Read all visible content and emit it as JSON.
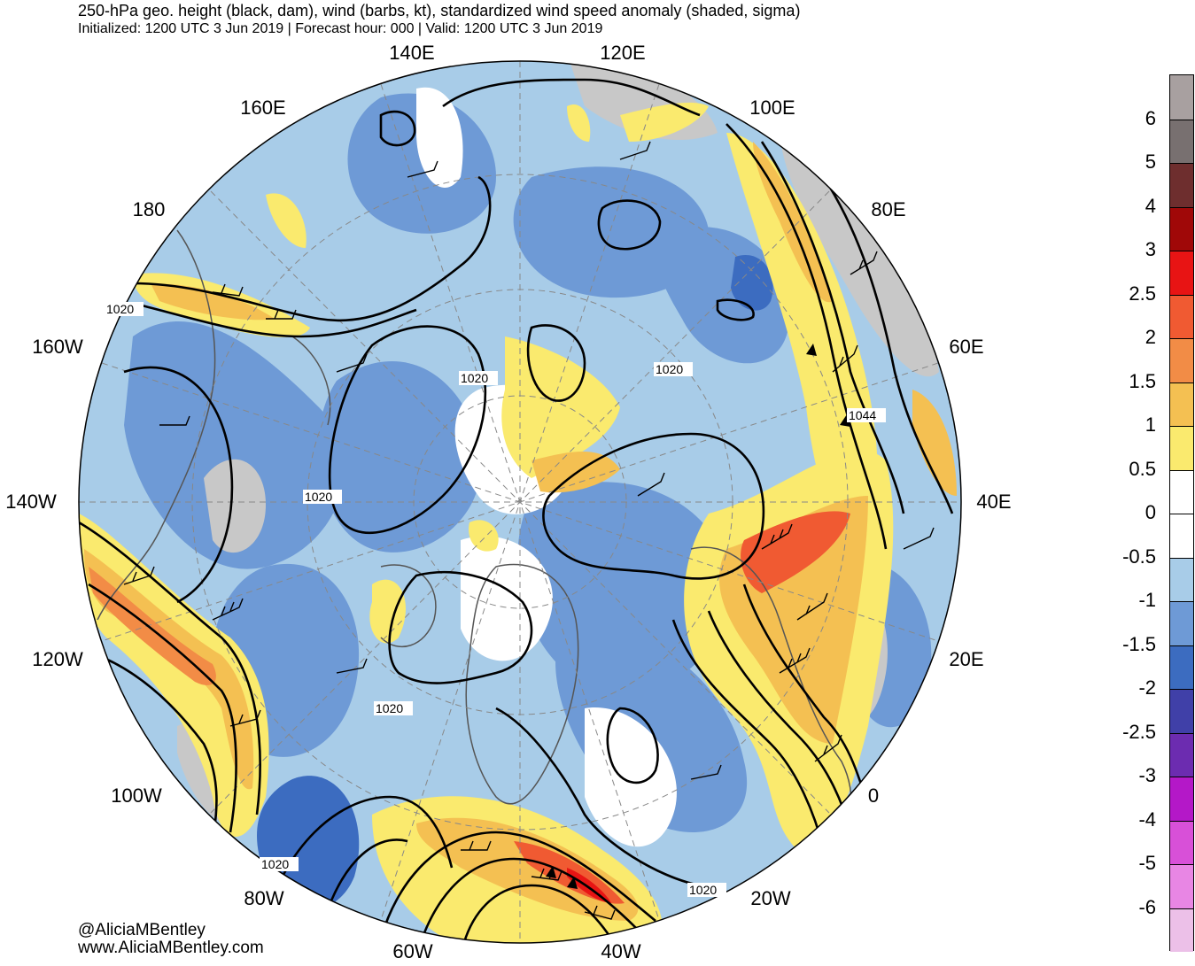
{
  "header": {
    "title": "250-hPa geo. height (black, dam), wind (barbs, kt), standardized wind speed anomaly (shaded, sigma)",
    "subtitle": "Initialized: 1200 UTC 3 Jun 2019 | Forecast hour: 000 | Valid: 1200 UTC 3 Jun 2019"
  },
  "map": {
    "projection": "north polar stereographic",
    "longitude_labels": [
      "140E",
      "120E",
      "160E",
      "100E",
      "180",
      "80E",
      "160W",
      "60E",
      "140W",
      "40E",
      "120W",
      "20E",
      "100W",
      "0",
      "80W",
      "20W",
      "60W",
      "40W"
    ],
    "contour_labels": [
      "1020",
      "1020",
      "1020",
      "1044",
      "1020",
      "1020",
      "1020",
      "1020"
    ]
  },
  "colorbar": {
    "levels": [
      "6",
      "5",
      "4",
      "3",
      "2.5",
      "2",
      "1.5",
      "1",
      "0.5",
      "0",
      "-0.5",
      "-1",
      "-1.5",
      "-2",
      "-2.5",
      "-3",
      "-4",
      "-5",
      "-6"
    ],
    "colors": [
      "#a8a0a0",
      "#787070",
      "#6e2e2e",
      "#a00808",
      "#e81414",
      "#f05a32",
      "#f28c46",
      "#f4c052",
      "#faea6e",
      "#ffffff",
      "#ffffff",
      "#a8cce8",
      "#6e9ad6",
      "#3c6cc0",
      "#4040a8",
      "#6c2cb0",
      "#b418c8",
      "#d850d8",
      "#e886e4",
      "#ecc0e8"
    ]
  },
  "credits": {
    "handle": "@AliciaMBentley",
    "website": "www.AliciaMBentley.com"
  }
}
